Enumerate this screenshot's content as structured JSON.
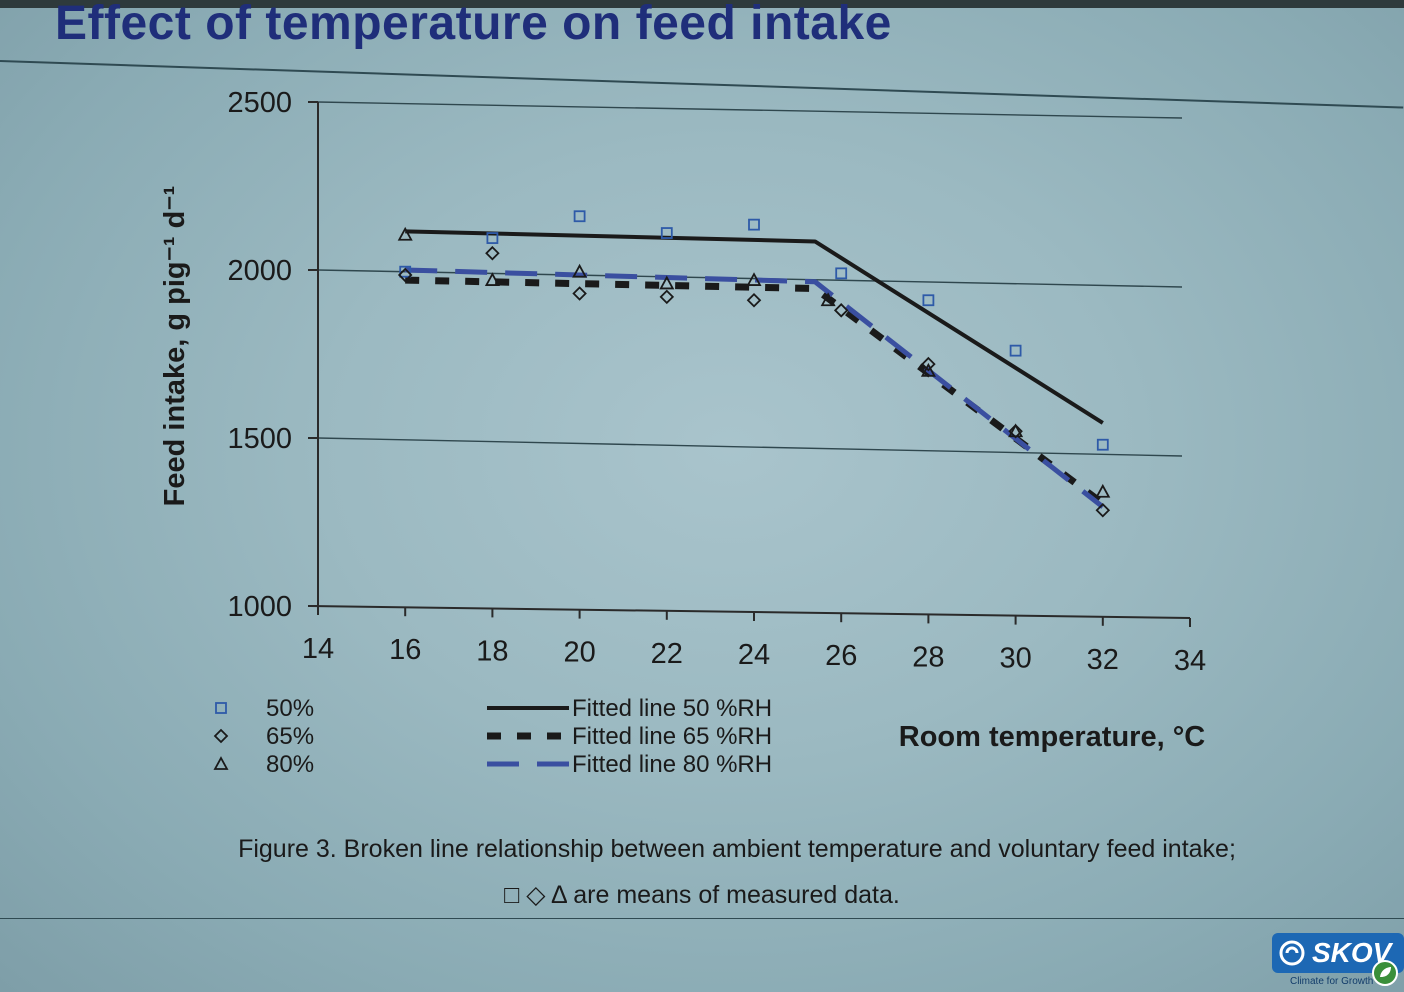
{
  "slide": {
    "title": "Effect of temperature on feed intake",
    "caption_line1": "Figure 3. Broken line relationship between ambient temperature and voluntary feed intake;",
    "caption_line2": "□ ◇ Δ are means of measured data.",
    "logo_text": "SKOV",
    "logo_tagline": "Climate for Growth"
  },
  "colors": {
    "title": "#1f2e7a",
    "line_50": "#1a1a1a",
    "line_65": "#1a1a1a",
    "line_80": "#3a4fa0",
    "marker_50": "#2e5aa8",
    "marker_65": "#1a1a1a",
    "marker_80": "#1a1a1a",
    "axis": "#2a2a2a",
    "gridline": "#2f474e"
  },
  "chart_data": {
    "type": "scatter",
    "xlabel": "Room temperature, °C",
    "ylabel": "Feed intake, g pig⁻¹ d⁻¹",
    "xlim": [
      14,
      34
    ],
    "ylim": [
      1000,
      2500
    ],
    "xticks": [
      14,
      16,
      18,
      20,
      22,
      24,
      26,
      28,
      30,
      32,
      34
    ],
    "yticks": [
      1000,
      1500,
      2000,
      2500
    ],
    "grid": "horizontal",
    "legend_position": "bottom-left",
    "markers": [
      {
        "name": "50%",
        "marker": "square",
        "points": [
          [
            16,
            1995
          ],
          [
            18,
            2095
          ],
          [
            20,
            2160
          ],
          [
            22,
            2110
          ],
          [
            24,
            2135
          ],
          [
            26,
            1990
          ],
          [
            28,
            1910
          ],
          [
            30,
            1760
          ],
          [
            32,
            1480
          ]
        ]
      },
      {
        "name": "65%",
        "marker": "diamond",
        "points": [
          [
            16,
            1985
          ],
          [
            18,
            2050
          ],
          [
            20,
            1930
          ],
          [
            22,
            1920
          ],
          [
            24,
            1910
          ],
          [
            26,
            1880
          ],
          [
            28,
            1720
          ],
          [
            30,
            1520
          ],
          [
            32,
            1285
          ]
        ]
      },
      {
        "name": "80%",
        "marker": "triangle",
        "points": [
          [
            16,
            2105
          ],
          [
            18,
            1970
          ],
          [
            20,
            1995
          ],
          [
            22,
            1960
          ],
          [
            24,
            1970
          ],
          [
            25.7,
            1910
          ],
          [
            28,
            1700
          ],
          [
            30,
            1520
          ],
          [
            32,
            1340
          ]
        ]
      }
    ],
    "fitted_lines": [
      {
        "name": "Fitted line 50 %RH",
        "style": "solid",
        "points": [
          [
            16,
            2115
          ],
          [
            25.4,
            2085
          ],
          [
            32,
            1545
          ]
        ]
      },
      {
        "name": "Fitted line 65 %RH",
        "style": "dotted",
        "points": [
          [
            16,
            1970
          ],
          [
            25.4,
            1945
          ],
          [
            32,
            1305
          ]
        ]
      },
      {
        "name": "Fitted line 80 %RH",
        "style": "dashed",
        "points": [
          [
            16,
            2000
          ],
          [
            25.4,
            1965
          ],
          [
            32,
            1295
          ]
        ]
      }
    ]
  }
}
